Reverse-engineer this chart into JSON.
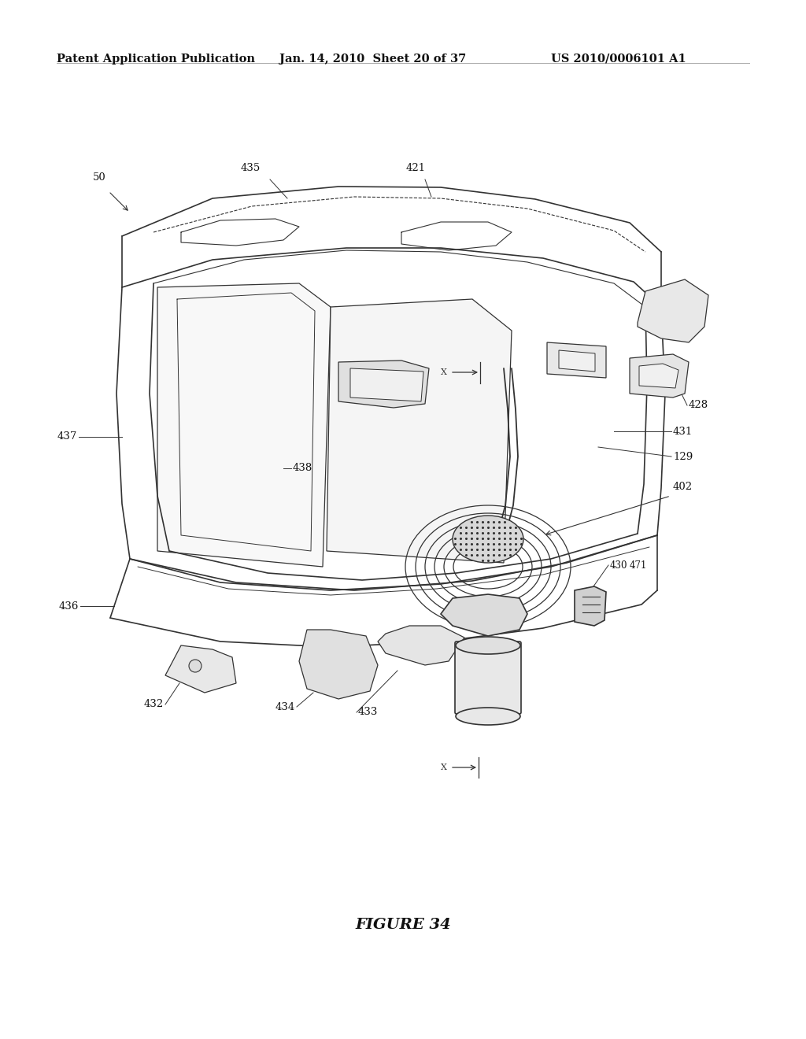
{
  "bg_color": "#ffffff",
  "header_left": "Patent Application Publication",
  "header_mid": "Jan. 14, 2010  Sheet 20 of 37",
  "header_right": "US 2010/0006101 A1",
  "figure_label": "FIGURE 34",
  "line_color": "#333333",
  "text_color": "#111111",
  "font_size_header": 10.5,
  "font_size_labels": 9.5,
  "font_size_figure": 14
}
